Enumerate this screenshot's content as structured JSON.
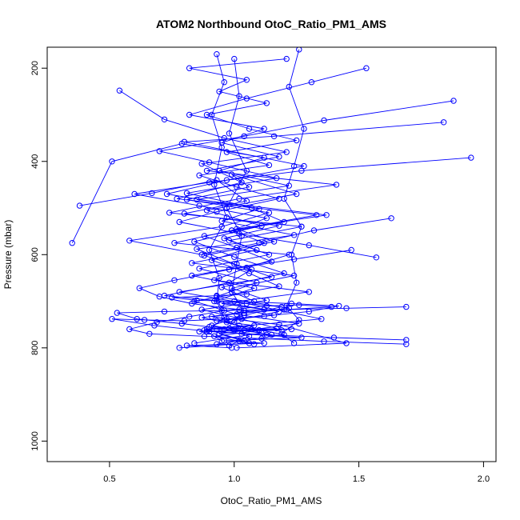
{
  "chart_data": {
    "type": "line",
    "title": "ATOM2 Northbound OtoC_Ratio_PM1_AMS",
    "xlabel": "OtoC_Ratio_PM1_AMS",
    "ylabel": "Pressure (mbar)",
    "xlim": [
      0.25,
      2.05
    ],
    "ylim": [
      1044,
      155
    ],
    "y_reversed": true,
    "grid": false,
    "legend": "none",
    "x_ticks": [
      "0.5",
      "1.0",
      "1.5",
      "2.0"
    ],
    "x_tick_values": [
      0.5,
      1.0,
      1.5,
      2.0
    ],
    "y_ticks": [
      "200",
      "400",
      "600",
      "800",
      "1000"
    ],
    "y_tick_values": [
      200,
      400,
      600,
      800,
      1000
    ],
    "colors": {
      "series": "#0000ff",
      "axes": "#000000"
    },
    "series": [
      {
        "x": [
          1.53,
          1.31,
          1.05,
          0.82,
          1.12,
          0.95,
          1.18,
          0.89,
          1.41,
          1.02,
          0.74,
          1.27,
          0.98,
          1.14,
          0.86,
          1.09,
          0.93,
          1.22
        ],
        "y": [
          200,
          230,
          265,
          300,
          330,
          360,
          390,
          420,
          450,
          480,
          510,
          540,
          570,
          600,
          630,
          660,
          690,
          715
        ]
      },
      {
        "x": [
          0.54,
          0.72,
          0.96,
          1.21,
          0.87,
          1.03,
          0.77,
          1.33,
          0.99,
          1.12,
          0.91,
          1.06,
          1.18,
          0.84,
          1.01,
          1.26,
          0.94,
          1.08
        ],
        "y": [
          248,
          310,
          350,
          380,
          405,
          445,
          480,
          515,
          548,
          575,
          612,
          640,
          668,
          700,
          728,
          748,
          770,
          792
        ]
      },
      {
        "x": [
          1.88,
          1.36,
          1.04,
          0.7,
          0.9,
          1.17,
          0.81,
          1.1,
          0.95,
          1.24,
          0.85,
          1.0,
          1.15,
          0.78,
          1.05,
          1.35,
          0.89,
          1.04
        ],
        "y": [
          270,
          312,
          346,
          378,
          402,
          436,
          468,
          502,
          528,
          558,
          588,
          620,
          648,
          680,
          705,
          738,
          760,
          785
        ]
      },
      {
        "x": [
          1.84,
          1.16,
          0.8,
          1.28,
          0.97,
          0.73,
          1.07,
          1.2,
          0.88,
          1.01,
          1.15,
          0.83,
          1.08,
          0.92,
          1.18,
          0.97,
          1.11,
          0.84
        ],
        "y": [
          316,
          346,
          358,
          410,
          440,
          470,
          500,
          530,
          560,
          585,
          615,
          645,
          672,
          700,
          722,
          745,
          768,
          790
        ]
      },
      {
        "x": [
          1.95,
          1.27,
          0.9,
          0.6,
          0.86,
          1.13,
          0.99,
          0.76,
          1.22,
          1.05,
          0.92,
          1.3,
          0.95,
          1.12,
          0.87,
          1.02,
          1.2,
          0.93
        ],
        "y": [
          392,
          420,
          445,
          470,
          495,
          522,
          548,
          575,
          600,
          628,
          655,
          680,
          705,
          718,
          735,
          752,
          772,
          792
        ]
      },
      {
        "x": [
          0.38,
          0.67,
          0.93,
          1.05,
          0.8,
          1.18,
          0.96,
          1.09,
          0.83,
          1.24,
          0.99,
          1.13,
          0.87,
          1.03,
          1.17,
          0.92,
          1.06,
          0.78
        ],
        "y": [
          495,
          468,
          440,
          485,
          512,
          538,
          565,
          590,
          618,
          645,
          672,
          698,
          718,
          738,
          758,
          775,
          790,
          800
        ]
      },
      {
        "x": [
          0.35,
          0.51,
          0.79,
          1.12,
          0.94,
          1.22,
          0.85,
          1.37,
          1.01,
          1.16,
          0.88,
          1.07,
          0.98,
          0.72,
          1.19,
          1.04,
          0.91,
          1.15
        ],
        "y": [
          575,
          400,
          362,
          392,
          420,
          452,
          482,
          515,
          545,
          572,
          602,
          632,
          660,
          688,
          712,
          730,
          752,
          772
        ]
      },
      {
        "x": [
          1.63,
          1.32,
          1.1,
          0.87,
          0.58,
          0.95,
          1.14,
          0.81,
          1.06,
          0.99,
          1.25,
          0.89,
          1.11,
          0.84,
          1.0,
          1.2,
          0.95,
          1.08
        ],
        "y": [
          522,
          548,
          575,
          600,
          570,
          540,
          510,
          482,
          455,
          428,
          470,
          505,
          538,
          572,
          605,
          640,
          670,
          700
        ]
      },
      {
        "x": [
          1.57,
          1.3,
          1.02,
          0.78,
          0.93,
          1.18,
          1.01,
          0.86,
          1.14,
          0.97,
          1.25,
          1.06,
          0.89,
          1.13,
          0.94,
          1.05,
          0.82,
          1.21
        ],
        "y": [
          606,
          580,
          555,
          530,
          508,
          480,
          455,
          430,
          408,
          380,
          355,
          330,
          300,
          275,
          250,
          225,
          200,
          180
        ]
      },
      {
        "x": [
          1.47,
          1.24,
          0.98,
          0.76,
          0.62,
          0.7,
          0.83,
          1.02,
          1.16,
          0.93,
          1.08,
          0.88,
          1.03,
          1.27,
          0.96,
          1.12,
          0.81,
          0.99
        ],
        "y": [
          590,
          610,
          632,
          655,
          672,
          690,
          705,
          718,
          730,
          742,
          752,
          762,
          770,
          778,
          785,
          790,
          795,
          800
        ]
      },
      {
        "x": [
          1.69,
          1.45,
          1.2,
          0.95,
          0.72,
          0.53,
          0.61,
          0.79,
          0.9,
          1.07,
          1.19,
          0.86,
          1.04,
          0.98,
          1.23,
          1.1,
          0.93,
          1.0
        ],
        "y": [
          712,
          715,
          718,
          720,
          722,
          725,
          738,
          748,
          755,
          760,
          762,
          765,
          762,
          758,
          760,
          762,
          760,
          760
        ]
      },
      {
        "x": [
          1.69,
          1.4,
          1.13,
          0.9,
          0.68,
          0.51,
          0.64,
          0.8,
          0.97,
          1.12,
          1.3,
          1.42,
          1.23,
          1.0,
          0.85,
          0.75,
          0.93,
          1.05
        ],
        "y": [
          783,
          778,
          772,
          765,
          752,
          738,
          740,
          742,
          738,
          732,
          722,
          710,
          705,
          700,
          698,
          692,
          688,
          685
        ]
      },
      {
        "x": [
          1.69,
          1.36,
          1.11,
          0.88,
          0.66,
          0.58,
          0.69,
          0.82,
          0.96,
          1.13,
          1.26,
          1.39,
          1.21,
          1.04,
          0.91,
          1.18,
          1.45,
          1.01
        ],
        "y": [
          792,
          786,
          780,
          775,
          770,
          760,
          745,
          733,
          720,
          710,
          708,
          712,
          718,
          725,
          733,
          750,
          790,
          800
        ]
      },
      {
        "x": [
          1.0,
          1.02,
          0.98,
          1.05,
          0.97,
          1.03,
          1.01,
          0.99,
          1.04,
          1.0,
          0.96,
          1.06,
          1.02,
          0.98
        ],
        "y": [
          180,
          260,
          340,
          420,
          500,
          560,
          620,
          680,
          720,
          745,
          760,
          775,
          785,
          795
        ]
      },
      {
        "x": [
          1.26,
          1.22,
          1.28,
          1.24,
          1.2,
          1.27,
          1.23,
          1.25,
          1.21,
          1.26,
          1.19,
          1.24
        ],
        "y": [
          160,
          240,
          330,
          410,
          480,
          540,
          600,
          660,
          710,
          740,
          770,
          790
        ]
      },
      {
        "x": [
          0.93,
          0.96,
          0.91,
          0.95,
          0.92,
          0.97,
          0.9,
          0.94,
          0.93,
          0.96,
          0.89,
          0.95
        ],
        "y": [
          170,
          230,
          300,
          370,
          450,
          520,
          590,
          650,
          700,
          735,
          765,
          785
        ]
      }
    ]
  }
}
